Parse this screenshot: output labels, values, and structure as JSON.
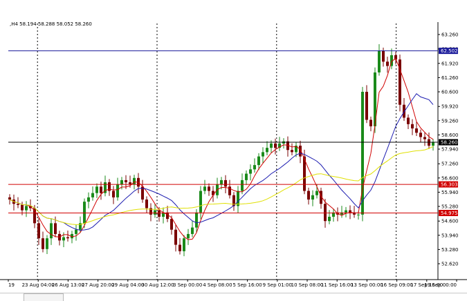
{
  "header": {
    "ohlc_line": ",H4 58.194 58.288 58.052 58.260"
  },
  "chart_data": {
    "type": "candlestick",
    "symbol_timeframe": "H4",
    "y_axis": {
      "range": [
        52.8,
        63.7
      ],
      "ticks": [
        "63.260",
        "62.590",
        "61.920",
        "61.260",
        "60.600",
        "59.920",
        "59.260",
        "58.600",
        "57.940",
        "57.260",
        "56.600",
        "55.940",
        "55.280",
        "54.600",
        "53.940",
        "53.280",
        "52.620"
      ]
    },
    "x_axis": {
      "labels": [
        "19",
        "23 Aug 04:00",
        "26 Aug 13:00",
        "27 Aug 20:00",
        "29 Aug 04:00",
        "30 Aug 12:00",
        "3 Sep 00:00",
        "4 Sep 08:00",
        "5 Sep 16:00",
        "9 Sep 01:00",
        "10 Sep 08:00",
        "11 Sep 16:00",
        "13 Sep 00:00",
        "16 Sep 09:00",
        "17 Sep 16:00",
        "19 Sep 00:00"
      ]
    },
    "horizontal_levels": [
      {
        "value": 62.502,
        "label": "62.502",
        "color": "#1a1a9a"
      },
      {
        "value": 58.26,
        "label": "58.260",
        "color": "#000000"
      },
      {
        "value": 56.303,
        "label": "56.303",
        "color": "#d00000"
      },
      {
        "value": 54.975,
        "label": "54.975",
        "color": "#d00000"
      }
    ],
    "closes": [
      55.6,
      55.4,
      55.35,
      55.1,
      55.3,
      55.2,
      54.5,
      53.8,
      53.3,
      53.8,
      54.5,
      54.0,
      53.7,
      53.85,
      53.8,
      54.0,
      54.2,
      54.5,
      55.5,
      55.7,
      55.9,
      56.2,
      55.9,
      56.4,
      56.0,
      55.7,
      56.3,
      56.5,
      56.4,
      56.3,
      56.6,
      56.2,
      55.6,
      55.2,
      54.9,
      55.1,
      54.8,
      55.0,
      54.7,
      54.2,
      53.5,
      53.2,
      53.8,
      54.0,
      54.3,
      55.0,
      56.0,
      56.2,
      56.0,
      55.8,
      56.3,
      56.5,
      56.2,
      55.8,
      55.3,
      56.0,
      56.5,
      56.8,
      57.0,
      57.2,
      57.6,
      57.8,
      58.0,
      58.2,
      58.0,
      58.2,
      58.3,
      57.9,
      57.8,
      58.1,
      57.6,
      56.0,
      55.6,
      55.8,
      56.0,
      55.4,
      54.6,
      54.8,
      55.0,
      54.9,
      55.0,
      55.1,
      55.0,
      54.9,
      54.9,
      60.6,
      59.3,
      59.0,
      61.5,
      62.5,
      62.0,
      61.8,
      62.3,
      62.1,
      60.0,
      59.4,
      59.1,
      58.9,
      58.7,
      58.5,
      58.4,
      58.1,
      58.26
    ],
    "moving_averages": [
      {
        "color": "#d00000"
      },
      {
        "color": "#1c1cb0"
      },
      {
        "color": "#e0e000"
      }
    ],
    "vertical_separators": [
      "23 Aug 04:00",
      "30 Aug 12:00",
      "9 Sep 01:00",
      "16 Sep 09:00"
    ],
    "grid": false,
    "price_tag_colors": {
      "62.502": "#1a1a9a",
      "58.260": "#000000",
      "56.303": "#d00000",
      "54.975": "#d00000"
    }
  }
}
